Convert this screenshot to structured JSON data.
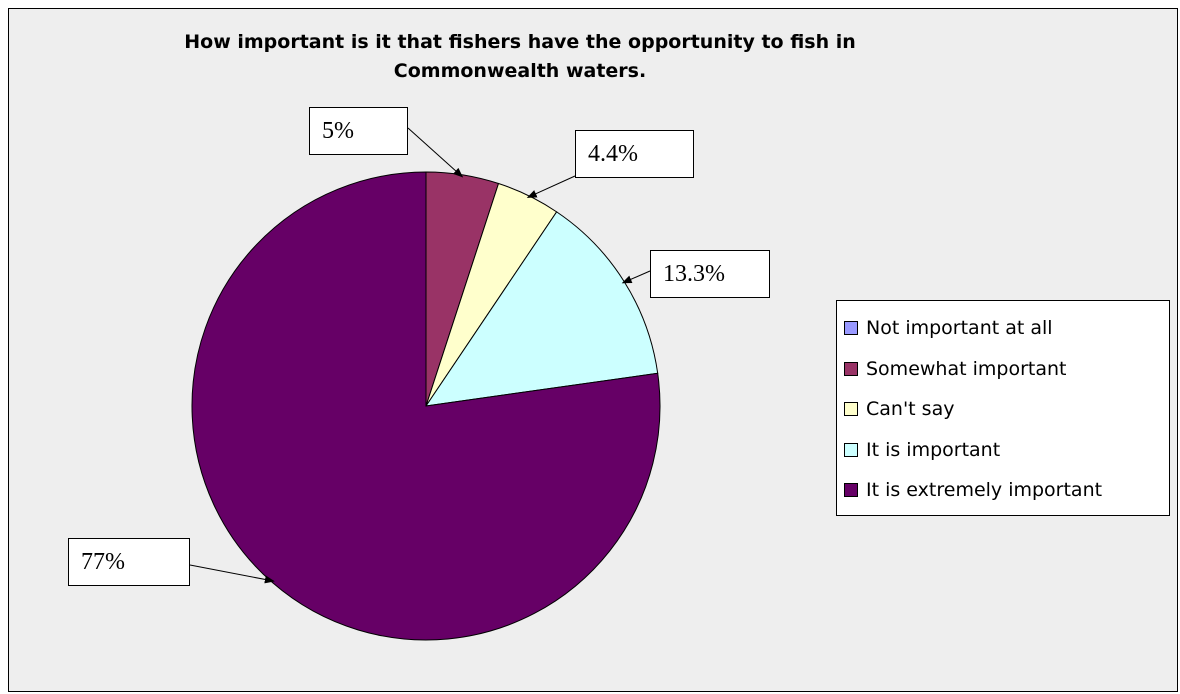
{
  "chart_data": {
    "type": "pie",
    "title": "How important is it that fishers have the opportunity to fish in\nCommonwealth waters.",
    "slices": [
      {
        "label": "Not important at all",
        "value": 0,
        "color": "#9999ff"
      },
      {
        "label": "Somewhat important",
        "value": 5,
        "data_label": "5%",
        "color": "#993366"
      },
      {
        "label": "Can't say",
        "value": 4.4,
        "data_label": "4.4%",
        "color": "#ffffcc"
      },
      {
        "label": "It is important",
        "value": 13.3,
        "data_label": "13.3%",
        "color": "#ccffff"
      },
      {
        "label": "It is extremely important",
        "value": 77,
        "data_label": "77%",
        "color": "#660066"
      }
    ],
    "legend_position": "right",
    "start_angle": "12 o'clock",
    "direction": "clockwise"
  },
  "colors": {
    "plot_background": "#eeeeee",
    "border": "#000000"
  }
}
